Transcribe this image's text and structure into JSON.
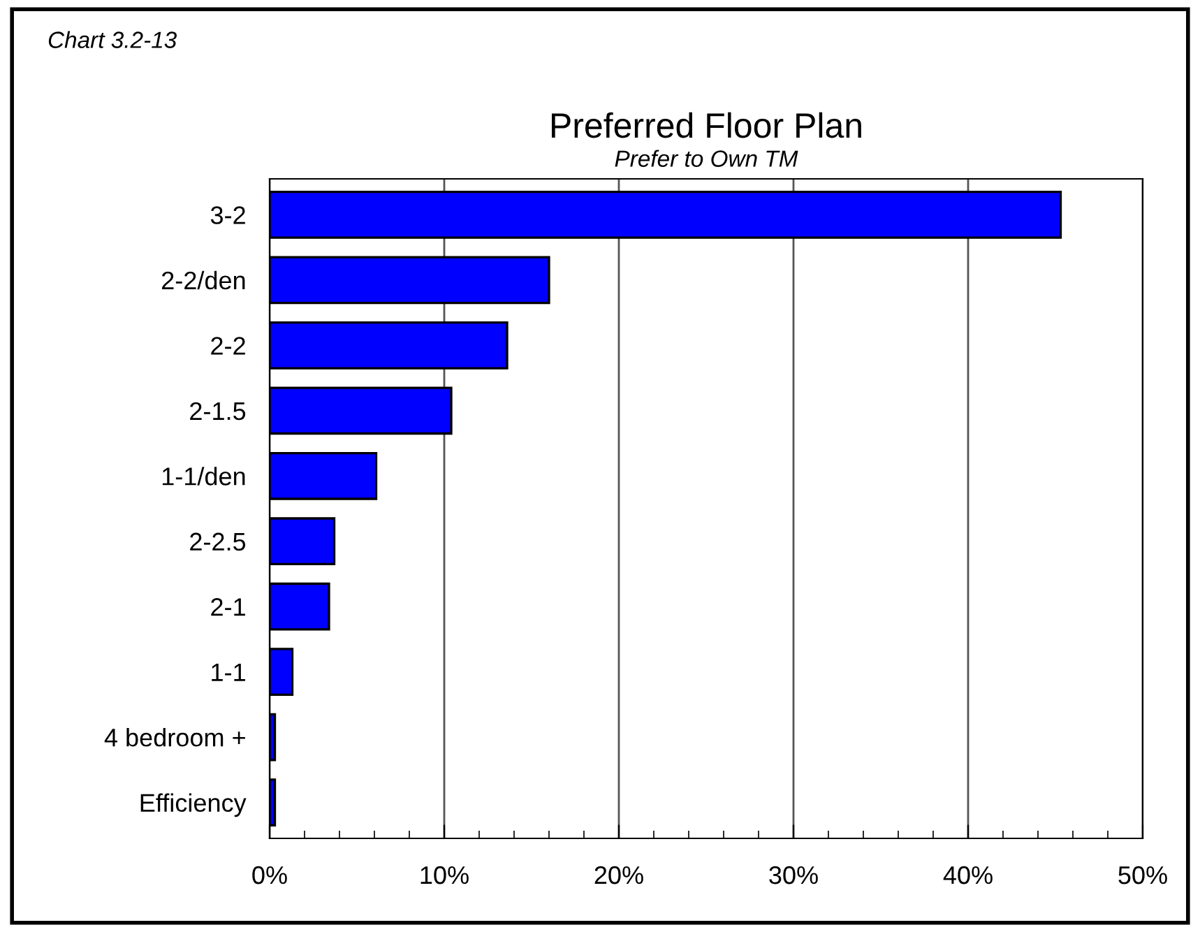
{
  "chart_data": {
    "type": "bar",
    "orientation": "horizontal",
    "title": "Preferred Floor Plan",
    "subtitle": "Prefer to Own TM",
    "annotations": [
      "Chart 3.2-13"
    ],
    "categories": [
      "3-2",
      "2-2/den",
      "2-2",
      "2-1.5",
      "1-1/den",
      "2-2.5",
      "2-1",
      "1-1",
      "4 bedroom +",
      "Efficiency"
    ],
    "values": [
      45.3,
      16.0,
      13.6,
      10.4,
      6.1,
      3.7,
      3.4,
      1.3,
      0.3,
      0.3
    ],
    "color": "#0000ff",
    "xlim": [
      0,
      50
    ],
    "xticks": [
      {
        "value": 0,
        "label": "0%"
      },
      {
        "value": 2,
        "label": null
      },
      {
        "value": 4,
        "label": null
      },
      {
        "value": 6,
        "label": null
      },
      {
        "value": 8,
        "label": null
      },
      {
        "value": 10,
        "label": "10%"
      },
      {
        "value": 12,
        "label": null
      },
      {
        "value": 14,
        "label": null
      },
      {
        "value": 16,
        "label": null
      },
      {
        "value": 18,
        "label": null
      },
      {
        "value": 20,
        "label": "20%"
      },
      {
        "value": 22,
        "label": null
      },
      {
        "value": 24,
        "label": null
      },
      {
        "value": 26,
        "label": null
      },
      {
        "value": 28,
        "label": null
      },
      {
        "value": 30,
        "label": "30%"
      },
      {
        "value": 32,
        "label": null
      },
      {
        "value": 34,
        "label": null
      },
      {
        "value": 36,
        "label": null
      },
      {
        "value": 38,
        "label": null
      },
      {
        "value": 40,
        "label": "40%"
      },
      {
        "value": 42,
        "label": null
      },
      {
        "value": 44,
        "label": null
      },
      {
        "value": 46,
        "label": null
      },
      {
        "value": 48,
        "label": null
      },
      {
        "value": 50,
        "label": "50%"
      }
    ],
    "grid": "x",
    "legend": false
  }
}
